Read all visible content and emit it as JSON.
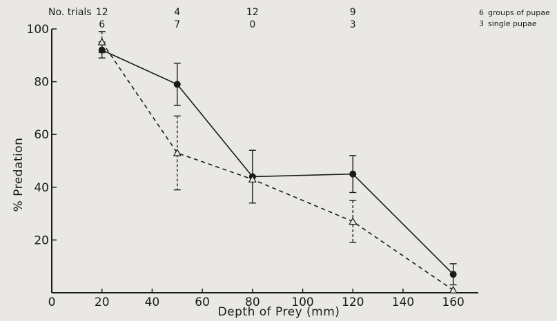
{
  "chart_data": {
    "type": "line",
    "xlabel": "Depth of Prey (mm)",
    "ylabel": "% Predation",
    "xlim": [
      0,
      170
    ],
    "ylim": [
      0,
      100
    ],
    "x_ticks": [
      "0",
      "20",
      "40",
      "60",
      "80",
      "100",
      "120",
      "140",
      "160"
    ],
    "y_ticks": [
      "20",
      "40",
      "60",
      "80",
      "100"
    ],
    "grid": false,
    "legend_position": "top-right",
    "trials_header": "No. trials",
    "trials": [
      {
        "x": 20,
        "groups": "12",
        "single": "6"
      },
      {
        "x": 50,
        "groups": "4",
        "single": "7"
      },
      {
        "x": 80,
        "groups": "12",
        "single": "0"
      },
      {
        "x": 120,
        "groups": "9",
        "single": "3"
      }
    ],
    "series": [
      {
        "name": "groups of pupae",
        "legend_count": "6",
        "line_style": "solid",
        "marker": "filled-circle",
        "points": [
          {
            "x": 20,
            "y": 92,
            "err": 3
          },
          {
            "x": 50,
            "y": 79,
            "err": 8
          },
          {
            "x": 80,
            "y": 44,
            "err": 10
          },
          {
            "x": 120,
            "y": 45,
            "err": 7
          },
          {
            "x": 160,
            "y": 7,
            "err": 4
          }
        ]
      },
      {
        "name": "single pupae",
        "legend_count": "3",
        "line_style": "dashed",
        "marker": "open-triangle",
        "points": [
          {
            "x": 20,
            "y": 95,
            "err": 4
          },
          {
            "x": 50,
            "y": 53,
            "err": 14
          },
          {
            "x": 80,
            "y": 43,
            "err": 0
          },
          {
            "x": 120,
            "y": 27,
            "err": 8
          },
          {
            "x": 160,
            "y": 1,
            "err": 0
          }
        ]
      }
    ]
  }
}
